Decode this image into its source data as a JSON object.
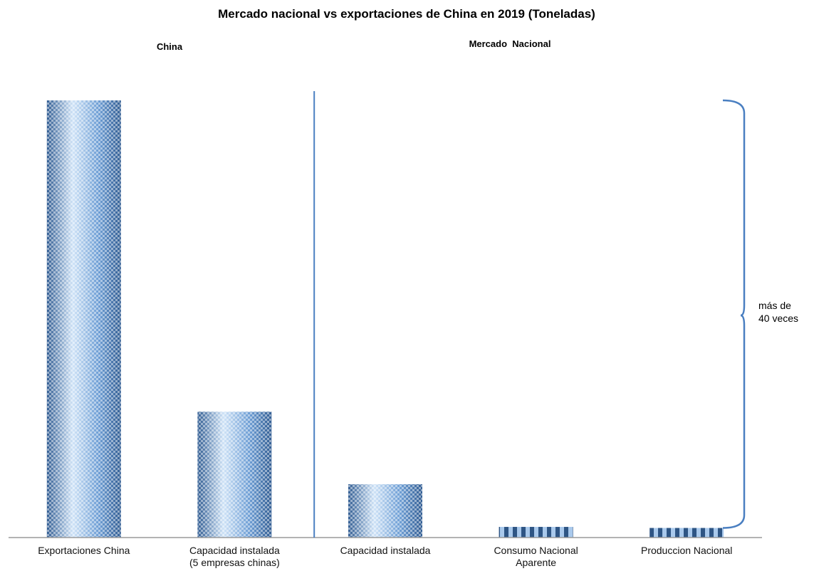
{
  "chart_data": {
    "type": "bar",
    "title": "Mercado nacional vs exportaciones de China en 2019 (Toneladas)",
    "groups": [
      {
        "label": "China",
        "category_count": 2
      },
      {
        "label": "Mercado  Nacional",
        "category_count": 3
      }
    ],
    "categories": [
      [
        "Exportaciones China"
      ],
      [
        "Capacidad instalada",
        "(5 empresas chinas)"
      ],
      [
        "Capacidad instalada"
      ],
      [
        "Consumo Nacional",
        "Aparente"
      ],
      [
        "Produccion Nacional"
      ]
    ],
    "values": [
      41,
      11.8,
      5,
      1,
      0.9
    ],
    "ylim": [
      0,
      41
    ],
    "y_axis_visible": false,
    "bar_styles": [
      "checker",
      "checker",
      "checker",
      "stripes",
      "stripes"
    ],
    "annotation": {
      "lines": [
        "más de",
        "40 veces"
      ],
      "brace_from_category": 4
    },
    "colors": {
      "bar_light": "#cfe3f7",
      "bar_mid": "#6f9fd5",
      "bar_dark": "#345f94",
      "stripe_dark": "#2e5584",
      "stripe_light": "#a9c9ec",
      "divider": "#4a7fc1",
      "brace": "#4a7fc1",
      "axis": "#9a9a9a",
      "text": "#111111"
    }
  }
}
